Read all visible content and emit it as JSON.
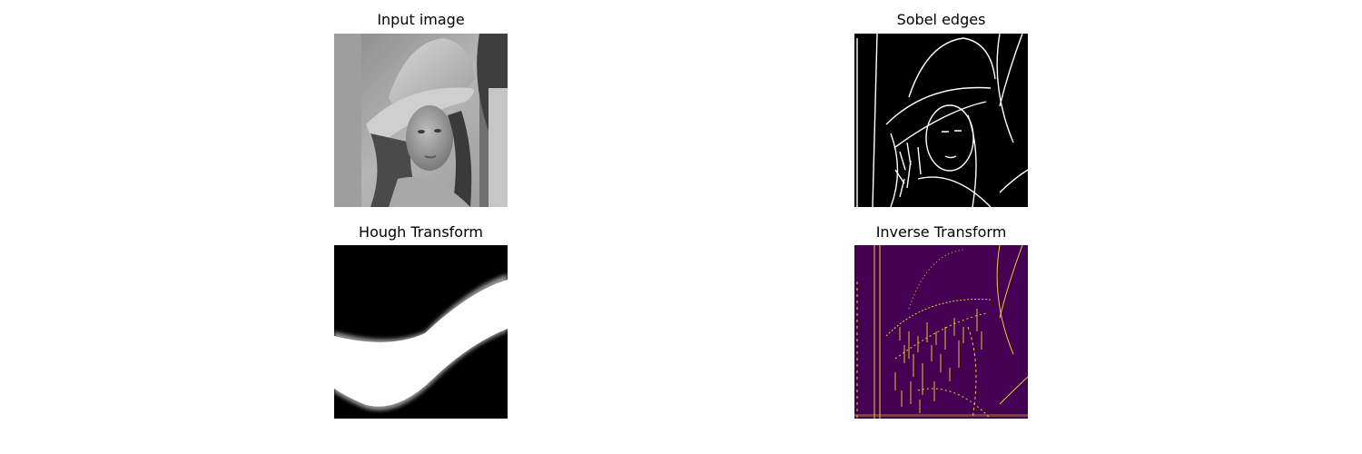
{
  "panels": [
    {
      "title": "Input image"
    },
    {
      "title": "Sobel edges"
    },
    {
      "title": "Hough Transform"
    },
    {
      "title": "Inverse Transform"
    }
  ],
  "colors": {
    "background": "#ffffff",
    "edge_bg": "#000000",
    "edge_fg": "#ffffff",
    "inverse_bg": "#440154",
    "inverse_fg": "#fde725"
  }
}
